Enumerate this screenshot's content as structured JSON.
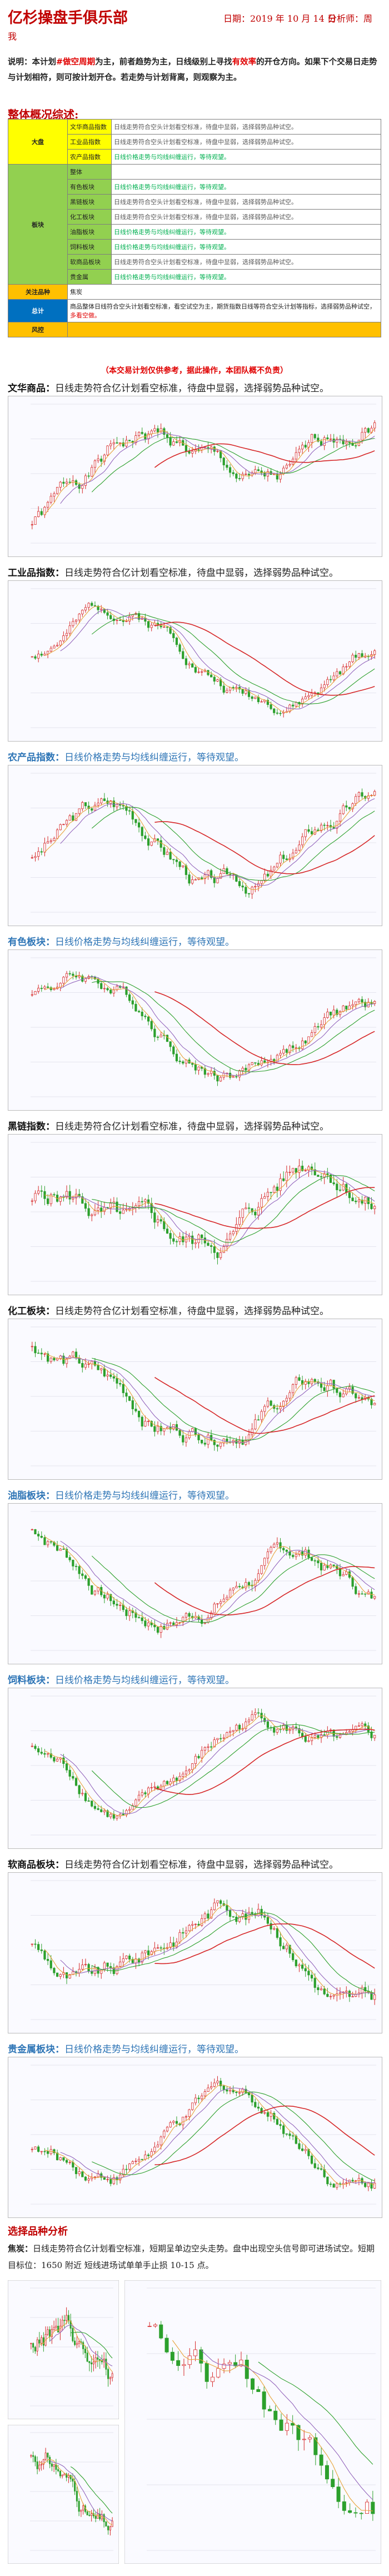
{
  "header": {
    "club": "亿杉操盘手俱乐部",
    "date": "日期：2019 年 10 月 14 日",
    "analyst": "分析师：周",
    "analyst2": "我"
  },
  "intro": {
    "lead": "说明：本计划",
    "r1": "#做空周期",
    "t2": "为主，前者趋势为主，日线级别上寻找",
    "r2": "有效率",
    "t3": "的开仓方向。如果下个交易日走势与计划相符，则可按计划开仓。若走势与计划背离，则观察为主。"
  },
  "overview": {
    "title": "整体概况综述:",
    "rows": [
      {
        "cat": "大盘",
        "name": "文华商品指数",
        "desc": "日线走势符合空头计划看空标准，待盘中显弱，选择弱势品种试空。"
      },
      {
        "cat": "",
        "name": "工业品指数",
        "desc": "日线走势符合空头计划看空标准，待盘中显弱，选择弱势品种试空。"
      },
      {
        "cat": "",
        "name": "农产品指数",
        "desc": "日线价格走势与均线纠缠运行，等待观望。"
      },
      {
        "cat": "板块",
        "name": "整体",
        "desc": ""
      },
      {
        "cat": "",
        "name": "有色板块",
        "desc": "日线价格走势与均线纠缠运行，等待观望。"
      },
      {
        "cat": "",
        "name": "黑链板块",
        "desc": "日线走势符合空头计划看空标准，待盘中显弱，选择弱势品种试空。"
      },
      {
        "cat": "",
        "name": "化工板块",
        "desc": "日线走势符合空头计划看空标准，待盘中显弱，选择弱势品种试空。"
      },
      {
        "cat": "",
        "name": "油脂板块",
        "desc": "日线价格走势与均线纠缠运行，等待观望。"
      },
      {
        "cat": "",
        "name": "饲料板块",
        "desc": "日线价格走势与均线纠缠运行，等待观望。"
      },
      {
        "cat": "",
        "name": "软商品板块",
        "desc": "日线走势符合空头计划看空标准，待盘中显弱，选择弱势品种试空。"
      },
      {
        "cat": "",
        "name": "贵金属",
        "desc": "日线价格走势与均线纠缠运行，等待观望。"
      }
    ],
    "focus_label": "关注品种",
    "focus_value": "焦炭",
    "summary_label": "总计",
    "summary_text": "商品整体日线符合空头计划看空标准，看空试空为主，期货指数日线等符合空头计划等指标，选择弱势品种试空，",
    "summary_red": "多看空做。",
    "risk_label": "风控",
    "risk_value": ""
  },
  "disclaimer": "（本交易计划仅供参考，据此操作，本团队概不负责）",
  "items": [
    {
      "label": "文华商品：",
      "body": "日线走势符合亿计划看空标准，待盘中显弱，选择弱势品种试空。",
      "blue": false
    },
    {
      "label": "工业品指数：",
      "body": "日线走势符合亿计划看空标准，待盘中显弱，选择弱势品种试空。",
      "blue": false
    },
    {
      "label": "农产品指数：",
      "body": "日线价格走势与均线纠缠运行，等待观望。",
      "blue": true
    },
    {
      "label": "有色板块：",
      "body": "日线价格走势与均线纠缠运行，等待观望。",
      "blue": true
    },
    {
      "label": "黑链指数：",
      "body": "日线走势符合亿计划看空标准，待盘中显弱，选择弱势品种试空。",
      "blue": false
    },
    {
      "label": "化工板块：",
      "body": "日线走势符合亿计划看空标准，待盘中显弱，选择弱势品种试空。",
      "blue": false
    },
    {
      "label": "油脂板块：",
      "body": "日线价格走势与均线纠缠运行，等待观望。",
      "blue": true
    },
    {
      "label": "饲料板块：",
      "body": "日线价格走势与均线纠缠运行，等待观望。",
      "blue": true
    },
    {
      "label": "软商品板块：",
      "body": "日线走势符合亿计划看空标准，待盘中显弱，选择弱势品种试空。",
      "blue": false
    },
    {
      "label": "贵金属板块：",
      "body": "日线价格走势与均线纠缠运行，等待观望。",
      "blue": true
    }
  ],
  "pick": {
    "title": "选择品种分析",
    "label": "焦炭：",
    "text": "日线走势符合亿计划看空标准，短期呈单边空头走势。盘中出现空头信号即可进场试空。短期目标位：1650 附近 短线进场试单单手止损 10-15 点。"
  },
  "colors": {
    "brand_red": "#c00000",
    "accent_red": "#e00000",
    "blue_text": "#2e75b6",
    "ma_red": "#d62728",
    "ma_purple": "#9467bd",
    "ma_green": "#2ca02c",
    "ma_orange": "#e8a33a"
  }
}
